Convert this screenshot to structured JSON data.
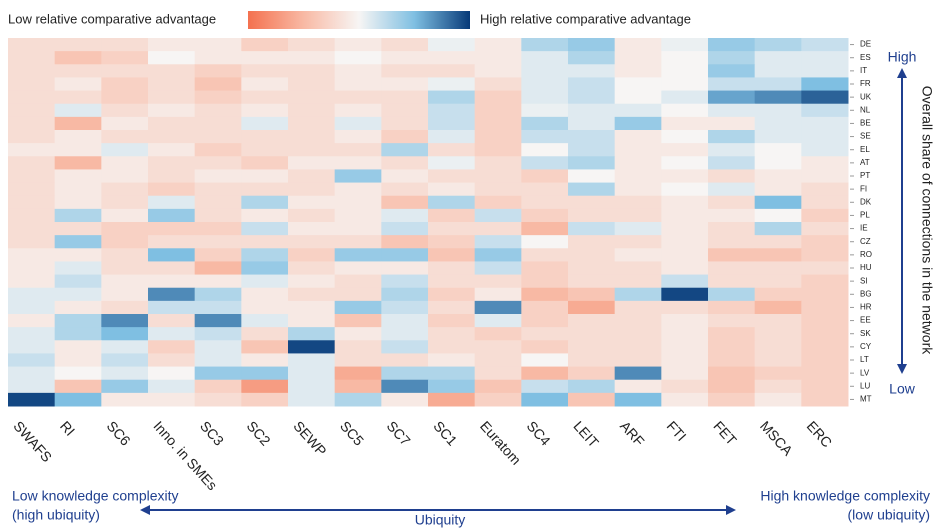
{
  "chart_data": {
    "type": "heatmap",
    "colorbar": {
      "low_label": "Low relative comparative advantage",
      "high_label": "High relative comparative advantage",
      "colors": [
        "#f4714f",
        "#f8b9a4",
        "#f7f5f4",
        "#7fbfe2",
        "#073a78"
      ]
    },
    "zlim": [
      -1,
      1
    ],
    "columns": [
      "SWAFS",
      "RI",
      "SC6",
      "Inno. in SMEs",
      "SC3",
      "SC2",
      "SEWP",
      "SC5",
      "SC7",
      "SC1",
      "Euratom",
      "SC4",
      "LEIT",
      "ARF",
      "FTI",
      "FET",
      "MSCA",
      "ERC"
    ],
    "rows": [
      "DE",
      "ES",
      "IT",
      "FR",
      "UK",
      "NL",
      "BE",
      "SE",
      "EL",
      "AT",
      "PT",
      "FI",
      "DK",
      "PL",
      "IE",
      "CZ",
      "RO",
      "HU",
      "SI",
      "BG",
      "HR",
      "EE",
      "SK",
      "CY",
      "LT",
      "LV",
      "LU",
      "MT"
    ],
    "values": [
      [
        -0.2,
        -0.2,
        -0.2,
        -0.1,
        -0.1,
        -0.3,
        -0.2,
        -0.1,
        -0.2,
        0.05,
        -0.1,
        0.3,
        0.4,
        -0.1,
        0.05,
        0.4,
        0.3,
        0.2
      ],
      [
        -0.2,
        -0.4,
        -0.3,
        0,
        -0.1,
        -0.1,
        -0.1,
        0,
        -0.1,
        -0.1,
        -0.1,
        0.1,
        0.3,
        -0.1,
        0,
        0.3,
        0.1,
        0.1
      ],
      [
        -0.2,
        -0.2,
        -0.2,
        -0.2,
        -0.3,
        -0.2,
        -0.2,
        -0.1,
        -0.2,
        -0.2,
        -0.1,
        0.1,
        0.1,
        -0.1,
        0,
        0.4,
        0.1,
        0.1
      ],
      [
        -0.2,
        -0.1,
        -0.3,
        -0.2,
        -0.4,
        -0.1,
        -0.2,
        -0.1,
        -0.1,
        0.05,
        -0.2,
        0.1,
        0.2,
        0,
        0,
        0.2,
        0.2,
        0.5
      ],
      [
        -0.2,
        -0.2,
        -0.3,
        -0.2,
        -0.3,
        -0.2,
        -0.2,
        -0.2,
        -0.2,
        0.3,
        -0.3,
        0.1,
        0.2,
        0,
        0.1,
        0.6,
        0.7,
        0.85
      ],
      [
        -0.2,
        0.1,
        -0.2,
        -0.1,
        -0.2,
        -0.1,
        -0.2,
        -0.1,
        -0.2,
        0.2,
        -0.3,
        0.05,
        0.1,
        0.1,
        0,
        0.1,
        0.1,
        0.2
      ],
      [
        -0.2,
        -0.5,
        -0.1,
        -0.2,
        -0.2,
        0.1,
        -0.2,
        0.1,
        -0.2,
        0.2,
        -0.3,
        0.3,
        0.1,
        0.4,
        -0.1,
        -0.1,
        0.1,
        0.1
      ],
      [
        -0.2,
        -0.1,
        -0.2,
        -0.2,
        -0.2,
        -0.2,
        -0.2,
        -0.1,
        -0.3,
        0.1,
        -0.3,
        0.2,
        0.2,
        -0.1,
        0,
        0.3,
        0.1,
        0.1
      ],
      [
        -0.1,
        -0.1,
        0.1,
        -0.1,
        -0.3,
        -0.2,
        -0.2,
        -0.2,
        0.3,
        -0.2,
        -0.3,
        0,
        0.2,
        -0.1,
        -0.1,
        0.1,
        0,
        0.1
      ],
      [
        -0.2,
        -0.5,
        -0.1,
        -0.2,
        -0.2,
        -0.3,
        -0.1,
        -0.1,
        -0.2,
        0.05,
        -0.2,
        0.2,
        0.3,
        -0.1,
        0,
        0.2,
        0,
        -0.1
      ],
      [
        -0.2,
        -0.1,
        -0.1,
        -0.2,
        -0.1,
        -0.1,
        -0.2,
        0.4,
        -0.1,
        -0.2,
        -0.2,
        -0.3,
        0,
        -0.1,
        -0.1,
        -0.2,
        -0.1,
        -0.1
      ],
      [
        -0.2,
        -0.1,
        -0.2,
        -0.3,
        -0.2,
        -0.2,
        -0.2,
        -0.1,
        -0.2,
        -0.1,
        -0.2,
        -0.2,
        0.3,
        -0.1,
        0,
        0.1,
        -0.1,
        -0.2
      ],
      [
        -0.2,
        -0.1,
        -0.2,
        0.1,
        -0.2,
        0.3,
        -0.1,
        -0.1,
        -0.4,
        0.3,
        -0.3,
        -0.2,
        -0.2,
        -0.2,
        -0.1,
        -0.2,
        0.5,
        -0.2
      ],
      [
        -0.2,
        0.3,
        -0.1,
        0.4,
        -0.2,
        -0.1,
        -0.2,
        -0.1,
        0.1,
        -0.3,
        0.2,
        -0.3,
        -0.2,
        -0.2,
        -0.1,
        -0.1,
        0,
        -0.3
      ],
      [
        -0.2,
        -0.2,
        -0.3,
        -0.3,
        -0.3,
        0.2,
        -0.1,
        -0.1,
        0.2,
        -0.2,
        -0.2,
        -0.5,
        0.2,
        0.1,
        -0.1,
        -0.2,
        0.3,
        -0.2
      ],
      [
        -0.2,
        0.4,
        -0.3,
        -0.2,
        -0.2,
        -0.2,
        -0.2,
        -0.2,
        -0.4,
        -0.3,
        0.2,
        0,
        -0.2,
        -0.2,
        -0.1,
        -0.2,
        -0.2,
        -0.3
      ],
      [
        -0.1,
        -0.1,
        -0.2,
        0.5,
        -0.3,
        0.3,
        -0.3,
        0.4,
        0.4,
        -0.4,
        0.4,
        -0.2,
        -0.2,
        -0.1,
        -0.1,
        -0.4,
        -0.4,
        -0.3
      ],
      [
        -0.1,
        0.1,
        -0.2,
        -0.2,
        -0.5,
        0.4,
        -0.2,
        -0.1,
        -0.1,
        -0.2,
        0.2,
        -0.3,
        -0.2,
        -0.2,
        -0.1,
        -0.2,
        -0.2,
        -0.2
      ],
      [
        -0.1,
        0.2,
        -0.1,
        -0.1,
        -0.1,
        0.1,
        -0.1,
        -0.2,
        0.2,
        -0.2,
        -0.2,
        -0.3,
        -0.2,
        -0.2,
        0.2,
        -0.2,
        -0.2,
        -0.3
      ],
      [
        0.1,
        0.1,
        -0.1,
        0.7,
        0.3,
        -0.1,
        -0.2,
        -0.2,
        0.3,
        -0.3,
        -0.1,
        -0.5,
        -0.4,
        0.3,
        0.95,
        0.3,
        -0.3,
        -0.3
      ],
      [
        0.1,
        -0.1,
        -0.2,
        0.2,
        0.2,
        -0.1,
        -0.1,
        0.4,
        0.2,
        -0.2,
        0.7,
        -0.3,
        -0.6,
        -0.2,
        -0.2,
        -0.3,
        -0.5,
        -0.3
      ],
      [
        -0.1,
        0.3,
        0.7,
        -0.2,
        0.7,
        0.1,
        -0.1,
        -0.4,
        0.1,
        -0.3,
        0.1,
        -0.3,
        -0.2,
        -0.2,
        -0.1,
        -0.2,
        -0.2,
        -0.3
      ],
      [
        0.1,
        0.3,
        0.5,
        0.1,
        0.2,
        -0.2,
        0.3,
        -0.1,
        0.1,
        -0.2,
        -0.3,
        -0.2,
        -0.2,
        -0.2,
        -0.1,
        -0.3,
        -0.2,
        -0.3
      ],
      [
        0.1,
        -0.1,
        0.1,
        -0.3,
        0.1,
        -0.4,
        0.95,
        -0.2,
        0.2,
        -0.2,
        -0.2,
        -0.3,
        -0.2,
        -0.2,
        -0.1,
        -0.3,
        -0.2,
        -0.3
      ],
      [
        0.2,
        -0.1,
        0.2,
        -0.2,
        0.1,
        -0.1,
        0.1,
        -0.2,
        -0.2,
        -0.1,
        -0.2,
        0,
        -0.2,
        -0.2,
        -0.1,
        -0.3,
        -0.2,
        -0.3
      ],
      [
        0.1,
        0,
        0.1,
        0,
        0.4,
        0.4,
        0.1,
        -0.6,
        0.3,
        0.3,
        -0.2,
        -0.5,
        -0.3,
        0.7,
        -0.1,
        -0.4,
        -0.3,
        -0.3
      ],
      [
        0.1,
        -0.4,
        0.4,
        0.1,
        -0.3,
        -0.7,
        0.1,
        -0.5,
        0.7,
        0.4,
        -0.4,
        0.2,
        0.3,
        -0.1,
        -0.2,
        -0.4,
        -0.2,
        -0.3
      ],
      [
        0.95,
        0.5,
        -0.1,
        -0.1,
        -0.2,
        -0.3,
        0.1,
        0.3,
        -0.1,
        -0.6,
        -0.3,
        0.5,
        -0.4,
        0.5,
        -0.1,
        -0.3,
        -0.1,
        -0.3
      ]
    ],
    "y_label": "Overall share of connections in the network",
    "y_top_label": "High",
    "y_bottom_label": "Low",
    "x_label": "Ubiquity",
    "x_left_label": [
      "Low knowledge complexity",
      "(high ubiquity)"
    ],
    "x_right_label": [
      "High knowledge complexity",
      "(low ubiquity)"
    ]
  }
}
